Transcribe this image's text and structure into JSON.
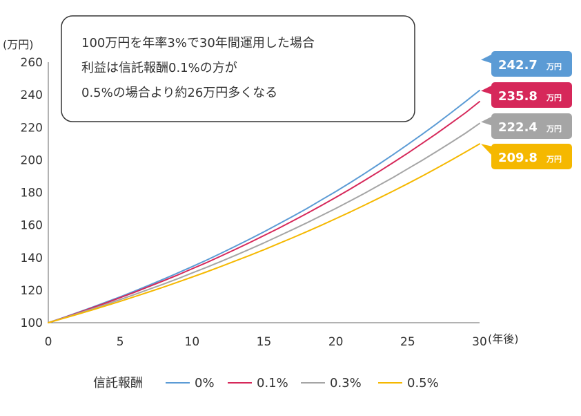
{
  "chart_data": {
    "type": "line",
    "annotation": [
      "100万円を年率3%で30年間運用した場合",
      "利益は信託報酬0.1%の方が",
      "0.5%の場合より約26万円多くなる"
    ],
    "ylabel": "(万円)",
    "xlabel": "(年後)",
    "ylim": [
      100,
      260
    ],
    "xlim": [
      0,
      30
    ],
    "yticks": [
      100,
      120,
      140,
      160,
      180,
      200,
      220,
      240,
      260
    ],
    "xticks": [
      0,
      5,
      10,
      15,
      20,
      25,
      30
    ],
    "legend_title": "信託報酬",
    "legend_position": "bottom",
    "grid": false,
    "series": [
      {
        "name": "0%",
        "color": "#5b9bd5",
        "value_label": "242.7",
        "label_unit": "万円",
        "x": [
          0,
          1,
          2,
          3,
          4,
          5,
          6,
          7,
          8,
          9,
          10,
          11,
          12,
          13,
          14,
          15,
          16,
          17,
          18,
          19,
          20,
          21,
          22,
          23,
          24,
          25,
          26,
          27,
          28,
          29,
          30
        ],
        "values": [
          100,
          103,
          106.1,
          109.3,
          112.6,
          115.9,
          119.4,
          123,
          126.7,
          130.5,
          134.4,
          138.4,
          142.6,
          146.9,
          151.3,
          155.8,
          160.5,
          165.3,
          170.2,
          175.4,
          180.6,
          186,
          191.6,
          197.4,
          203.3,
          209.4,
          215.7,
          222.1,
          228.8,
          235.7,
          242.7
        ]
      },
      {
        "name": "0.1%",
        "color": "#d6285a",
        "value_label": "235.8",
        "label_unit": "万円",
        "x": [
          0,
          1,
          2,
          3,
          4,
          5,
          6,
          7,
          8,
          9,
          10,
          11,
          12,
          13,
          14,
          15,
          16,
          17,
          18,
          19,
          20,
          21,
          22,
          23,
          24,
          25,
          26,
          27,
          28,
          29,
          30
        ],
        "values": [
          100,
          102.9,
          105.9,
          109,
          112.1,
          115.4,
          118.7,
          122.2,
          125.7,
          129.3,
          133.1,
          136.9,
          140.9,
          145,
          149.2,
          153.5,
          157.9,
          162.5,
          167.2,
          172,
          177,
          182.1,
          187.4,
          192.8,
          198.4,
          204.1,
          210.1,
          216.1,
          222.4,
          228.8,
          235.8
        ]
      },
      {
        "name": "0.3%",
        "color": "#a5a5a5",
        "value_label": "222.4",
        "label_unit": "万円",
        "x": [
          0,
          1,
          2,
          3,
          4,
          5,
          6,
          7,
          8,
          9,
          10,
          11,
          12,
          13,
          14,
          15,
          16,
          17,
          18,
          19,
          20,
          21,
          22,
          23,
          24,
          25,
          26,
          27,
          28,
          29,
          30
        ],
        "values": [
          100,
          102.7,
          105.5,
          108.3,
          111.2,
          114.2,
          117.3,
          120.5,
          123.7,
          127,
          130.5,
          134,
          137.6,
          141.3,
          145.1,
          149,
          153.1,
          157.2,
          161.4,
          165.8,
          170.2,
          174.8,
          179.5,
          184.4,
          189.3,
          194.5,
          199.7,
          205.1,
          210.6,
          216.3,
          222.4
        ]
      },
      {
        "name": "0.5%",
        "color": "#f5b800",
        "value_label": "209.8",
        "label_unit": "万円",
        "x": [
          0,
          1,
          2,
          3,
          4,
          5,
          6,
          7,
          8,
          9,
          10,
          11,
          12,
          13,
          14,
          15,
          16,
          17,
          18,
          19,
          20,
          21,
          22,
          23,
          24,
          25,
          26,
          27,
          28,
          29,
          30
        ],
        "values": [
          100,
          102.5,
          105.1,
          107.7,
          110.4,
          113.1,
          116,
          118.9,
          121.8,
          124.9,
          128,
          131.2,
          134.5,
          137.9,
          141.3,
          144.8,
          148.5,
          152.2,
          156,
          159.9,
          163.9,
          168,
          172.2,
          176.5,
          180.9,
          185.4,
          190,
          194.8,
          199.7,
          204.7,
          209.8
        ]
      }
    ]
  }
}
